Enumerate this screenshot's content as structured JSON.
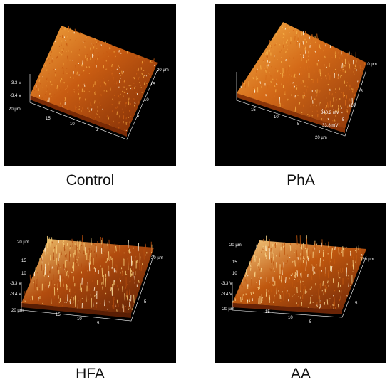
{
  "panels": [
    {
      "id": "control",
      "caption": "Control",
      "colors": {
        "dark": "#7a2a05",
        "mid": "#c85c12",
        "light": "#f2a640"
      },
      "labels": [
        "-3.3 V",
        "-3.4 V",
        "20 µm",
        "20 µm",
        "15",
        "10",
        "5",
        "15",
        "10",
        "5"
      ]
    },
    {
      "id": "pha",
      "caption": "PhA",
      "colors": {
        "dark": "#8a3408",
        "mid": "#d46a18",
        "light": "#f6b24a"
      },
      "labels": [
        "10 µm",
        "340.2 mV",
        "33.8 mV",
        "20 µm",
        "15",
        "10",
        "5",
        "15",
        "10",
        "5"
      ]
    },
    {
      "id": "hfa",
      "caption": "HFA",
      "colors": {
        "dark": "#5a1e04",
        "mid": "#b24c0e",
        "light": "#f7d07a"
      },
      "labels": [
        "20 µm",
        "-3.3 V",
        "-3.4 V",
        "20 µm",
        "15",
        "10",
        "5",
        "15",
        "10",
        "5",
        "20 µm"
      ]
    },
    {
      "id": "aa",
      "caption": "AA",
      "colors": {
        "dark": "#6a2406",
        "mid": "#c0580f",
        "light": "#f8d48a"
      },
      "labels": [
        "20 µm",
        "-3.3 V",
        "-3.4 V",
        "20 µm",
        "15",
        "10",
        "5",
        "15",
        "10",
        "5",
        "20 µm"
      ]
    }
  ]
}
